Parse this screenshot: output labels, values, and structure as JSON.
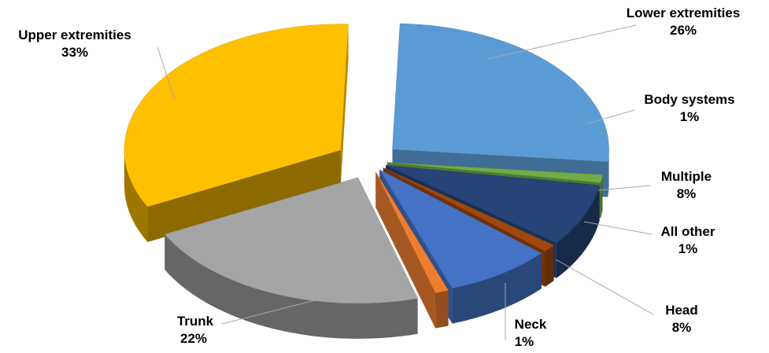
{
  "chart_data": {
    "type": "pie",
    "style": "3d-exploded",
    "slices": [
      {
        "name": "Lower extremities",
        "value": 26,
        "label": "26%",
        "color": "#5b9bd5"
      },
      {
        "name": "Body systems",
        "value": 1,
        "label": "1%",
        "color": "#70ad47"
      },
      {
        "name": "Multiple",
        "value": 8,
        "label": "8%",
        "color": "#264478"
      },
      {
        "name": "All other",
        "value": 1,
        "label": "1%",
        "color": "#9e480e"
      },
      {
        "name": "Head",
        "value": 8,
        "label": "8%",
        "color": "#4472c4"
      },
      {
        "name": "Neck",
        "value": 1,
        "label": "1%",
        "color": "#ed7d31"
      },
      {
        "name": "Trunk",
        "value": 22,
        "label": "22%",
        "color": "#a5a5a5"
      },
      {
        "name": "Upper extremities",
        "value": 33,
        "label": "33%",
        "color": "#ffc000"
      }
    ]
  }
}
